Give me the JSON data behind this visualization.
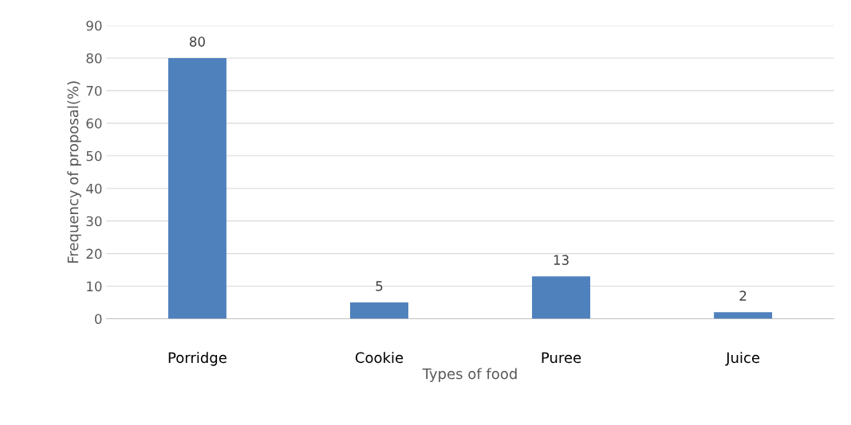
{
  "chart_data": {
    "type": "bar",
    "xlabel": "Types of food",
    "ylabel": "Frequency of proposal(%)",
    "categories": [
      "Porridge",
      "Cookie",
      "Puree",
      "Juice"
    ],
    "values": [
      80,
      5,
      13,
      2
    ],
    "color": "#4f81bd",
    "ylim": [
      0,
      90
    ],
    "yticks": [
      0,
      10,
      20,
      30,
      40,
      50,
      60,
      70,
      80,
      90
    ],
    "grid": "y",
    "data_labels": true
  }
}
